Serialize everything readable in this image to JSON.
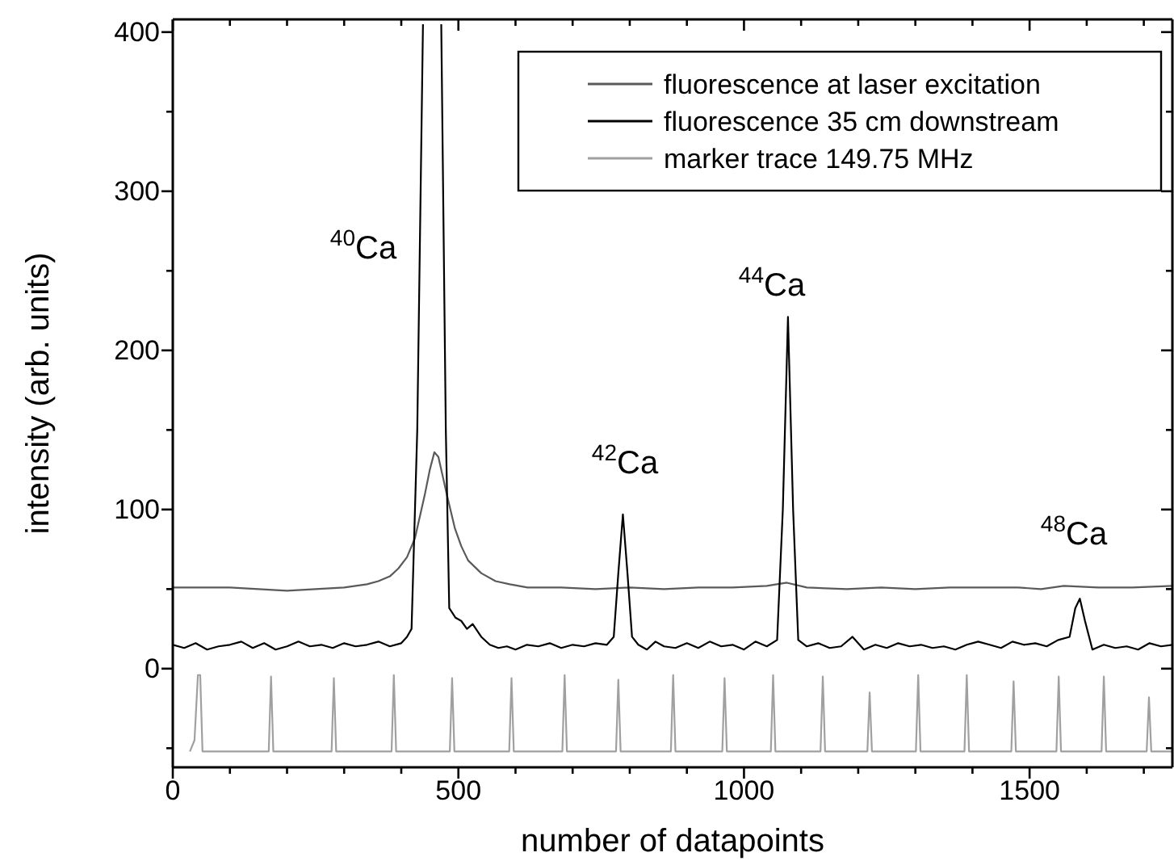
{
  "chart_data": {
    "type": "line",
    "xlabel": "number of datapoints",
    "ylabel": "intensity (arb. units)",
    "xlim": [
      0,
      1750
    ],
    "ylim": [
      -62,
      408
    ],
    "xticks": [
      0,
      {
        "value": 100,
        "label": null
      },
      {
        "value": 200,
        "label": null
      },
      {
        "value": 300,
        "label": null
      },
      {
        "value": 400,
        "label": null
      },
      500,
      {
        "value": 600,
        "label": null
      },
      {
        "value": 700,
        "label": null
      },
      {
        "value": 800,
        "label": null
      },
      {
        "value": 900,
        "label": null
      },
      1000,
      {
        "value": 1100,
        "label": null
      },
      {
        "value": 1200,
        "label": null
      },
      {
        "value": 1300,
        "label": null
      },
      {
        "value": 1400,
        "label": null
      },
      1500,
      {
        "value": 1600,
        "label": null
      },
      {
        "value": 1700,
        "label": null
      }
    ],
    "yticks": [
      {
        "value": -50,
        "label": null
      },
      0,
      {
        "value": 50,
        "label": null
      },
      100,
      {
        "value": 150,
        "label": null
      },
      200,
      {
        "value": 250,
        "label": null
      },
      300,
      {
        "value": 350,
        "label": null
      },
      400
    ],
    "legend": "top right",
    "grid": false,
    "line_style": "solid",
    "marker": "none",
    "annotations": [
      "$^{40}$Ca",
      "$^{42}$Ca",
      "$^{44}$Ca",
      "$^{48}$Ca"
    ],
    "series": [
      {
        "name": "fluorescence at laser excitation",
        "color": "#5a5a5a",
        "x": [
          0,
          50,
          100,
          150,
          200,
          250,
          300,
          340,
          360,
          380,
          395,
          410,
          424,
          441,
          450,
          458,
          465,
          480,
          494,
          505,
          517,
          540,
          565,
          590,
          621,
          680,
          740,
          800,
          860,
          920,
          980,
          1040,
          1075,
          1110,
          1180,
          1240,
          1300,
          1360,
          1420,
          1480,
          1520,
          1560,
          1620,
          1680,
          1750
        ],
        "values": [
          51,
          51,
          51,
          50,
          49,
          50,
          51,
          53,
          55,
          58,
          63,
          70,
          82,
          109,
          125,
          136,
          133,
          109,
          88,
          77,
          68,
          60,
          55,
          53,
          51,
          51,
          50,
          51,
          50,
          51,
          51,
          52,
          54,
          51,
          50,
          51,
          50,
          51,
          51,
          51,
          50,
          52,
          51,
          51,
          52
        ]
      },
      {
        "name": "fluorescence 35 cm downstream",
        "color": "#000000",
        "x": [
          0,
          20,
          40,
          60,
          80,
          100,
          120,
          140,
          160,
          180,
          200,
          220,
          240,
          260,
          280,
          300,
          320,
          340,
          360,
          380,
          400,
          410,
          418,
          428,
          438,
          454,
          470,
          478,
          484,
          495,
          505,
          515,
          525,
          540,
          555,
          570,
          585,
          600,
          620,
          640,
          660,
          680,
          700,
          720,
          740,
          760,
          772,
          780,
          788,
          796,
          804,
          815,
          830,
          845,
          860,
          880,
          900,
          920,
          940,
          960,
          980,
          1000,
          1020,
          1040,
          1058,
          1068,
          1077,
          1086,
          1095,
          1110,
          1130,
          1150,
          1170,
          1190,
          1210,
          1230,
          1250,
          1270,
          1290,
          1310,
          1330,
          1350,
          1370,
          1390,
          1410,
          1430,
          1450,
          1470,
          1490,
          1510,
          1530,
          1550,
          1570,
          1580,
          1588,
          1597,
          1610,
          1630,
          1650,
          1670,
          1690,
          1710,
          1730,
          1750
        ],
        "values": [
          15,
          13,
          16,
          12,
          14,
          15,
          17,
          13,
          16,
          12,
          14,
          17,
          14,
          15,
          13,
          16,
          14,
          15,
          17,
          14,
          16,
          20,
          25,
          150,
          405,
          null,
          405,
          150,
          38,
          32,
          30,
          25,
          28,
          20,
          15,
          13,
          14,
          12,
          15,
          14,
          16,
          13,
          15,
          14,
          16,
          15,
          20,
          60,
          97,
          60,
          20,
          15,
          12,
          17,
          14,
          13,
          16,
          13,
          17,
          14,
          15,
          12,
          17,
          14,
          18,
          100,
          221,
          100,
          18,
          14,
          16,
          13,
          14,
          20,
          12,
          15,
          13,
          16,
          14,
          15,
          13,
          14,
          12,
          15,
          17,
          15,
          13,
          17,
          15,
          16,
          14,
          18,
          20,
          38,
          44,
          30,
          12,
          15,
          13,
          14,
          12,
          16,
          14,
          15
        ]
      },
      {
        "name": "marker trace 149.75 MHz",
        "color": "#a0a0a0",
        "x": [
          30,
          38,
          44,
          48,
          52,
          168,
          172,
          176,
          278,
          282,
          286,
          383,
          387,
          391,
          485,
          489,
          493,
          589,
          593,
          597,
          682,
          686,
          690,
          776,
          780,
          784,
          872,
          876,
          880,
          962,
          966,
          970,
          1047,
          1051,
          1055,
          1134,
          1138,
          1142,
          1216,
          1220,
          1224,
          1301,
          1305,
          1309,
          1386,
          1390,
          1394,
          1468,
          1472,
          1476,
          1547,
          1551,
          1555,
          1626,
          1630,
          1634,
          1705,
          1709,
          1713,
          1750
        ],
        "values": [
          -52,
          -45,
          -4,
          -4,
          -52,
          -52,
          -5,
          -52,
          -52,
          -6,
          -52,
          -52,
          -4,
          -52,
          -52,
          -6,
          -52,
          -52,
          -6,
          -52,
          -52,
          -4,
          -52,
          -52,
          -7,
          -52,
          -52,
          -4,
          -52,
          -52,
          -6,
          -52,
          -52,
          -4,
          -52,
          -52,
          -5,
          -52,
          -52,
          -15,
          -52,
          -52,
          -4,
          -52,
          -52,
          -4,
          -52,
          -52,
          -8,
          -52,
          -52,
          -5,
          -52,
          -52,
          -5,
          -52,
          -52,
          -18,
          -52,
          -52
        ]
      }
    ]
  }
}
